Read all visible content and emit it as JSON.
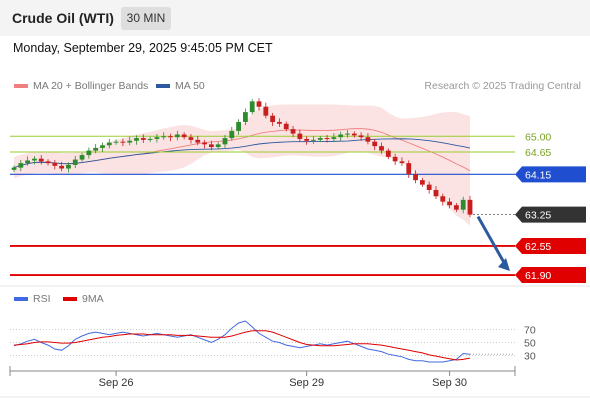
{
  "header": {
    "instrument": "Crude Oil (WTI)",
    "timeframe": "30 MIN",
    "timestamp": "Monday, September 29, 2025 9:45:05 PM CET",
    "credit": "Research © 2025 Trading Central"
  },
  "legend": {
    "ma20": "MA 20 + Bollinger Bands",
    "ma50": "MA 50",
    "ma20_color": "#f08080",
    "ma50_color": "#2c5aa0"
  },
  "rsi_legend": {
    "rsi": "RSI",
    "ma9": "9MA",
    "rsi_color": "#4169e1",
    "ma9_color": "#e00000"
  },
  "chart_data": [
    {
      "type": "candlestick",
      "x_labels": [
        "Sep 26",
        "Sep 29",
        "Sep 30"
      ],
      "ylim": [
        61.7,
        65.9
      ],
      "closes": [
        64.3,
        64.4,
        64.46,
        64.5,
        64.44,
        64.4,
        64.34,
        64.28,
        64.36,
        64.48,
        64.58,
        64.68,
        64.74,
        64.8,
        64.86,
        64.88,
        64.86,
        64.9,
        64.96,
        64.92,
        64.94,
        64.98,
        65.0,
        64.98,
        65.04,
        64.98,
        64.92,
        64.86,
        64.82,
        64.76,
        64.82,
        64.96,
        65.12,
        65.32,
        65.54,
        65.78,
        65.66,
        65.46,
        65.32,
        65.28,
        65.16,
        65.06,
        64.94,
        64.9,
        64.92,
        64.96,
        64.94,
        64.98,
        65.04,
        65.06,
        65.02,
        64.98,
        64.88,
        64.78,
        64.68,
        64.54,
        64.44,
        64.4,
        64.16,
        64.02,
        63.92,
        63.8,
        63.66,
        63.54,
        63.46,
        63.36,
        63.58,
        63.25
      ],
      "resistances": [
        65.0,
        64.65
      ],
      "current": 63.25,
      "support_lines": [
        64.15,
        62.55,
        61.9
      ],
      "support_line_colors": [
        "#1f4fd0",
        "#e00000",
        "#e00000"
      ],
      "resistance_color": "#9acd32",
      "current_color": "#333333",
      "arrow_color": "#2c5aa0"
    },
    {
      "type": "line",
      "name": "RSI",
      "levels": [
        70,
        50,
        30
      ],
      "ylim": [
        0,
        100
      ],
      "series": [
        {
          "name": "RSI",
          "values": [
            45,
            48,
            52,
            55,
            50,
            46,
            40,
            38,
            45,
            55,
            60,
            64,
            66,
            64,
            62,
            64,
            66,
            64,
            62,
            60,
            62,
            64,
            62,
            60,
            58,
            60,
            62,
            58,
            54,
            50,
            55,
            62,
            72,
            80,
            83,
            74,
            64,
            58,
            52,
            50,
            46,
            44,
            42,
            44,
            46,
            48,
            46,
            48,
            50,
            52,
            48,
            44,
            40,
            38,
            36,
            32,
            30,
            28,
            24,
            22,
            22,
            20,
            20,
            20,
            22,
            24,
            33,
            32
          ],
          "color": "#4169e1"
        },
        {
          "name": "9MA",
          "values": [
            46,
            47,
            48,
            50,
            51,
            51,
            50,
            49,
            49,
            50,
            52,
            54,
            56,
            58,
            59,
            61,
            62,
            63,
            63,
            63,
            62,
            62,
            62,
            62,
            61,
            61,
            61,
            60,
            59,
            58,
            58,
            58,
            60,
            63,
            66,
            68,
            68,
            68,
            66,
            62,
            58,
            54,
            50,
            47,
            46,
            45,
            45,
            45,
            46,
            47,
            48,
            48,
            48,
            47,
            46,
            44,
            42,
            40,
            38,
            36,
            34,
            31,
            29,
            27,
            25,
            23,
            24,
            26
          ],
          "color": "#e00000"
        }
      ]
    }
  ]
}
